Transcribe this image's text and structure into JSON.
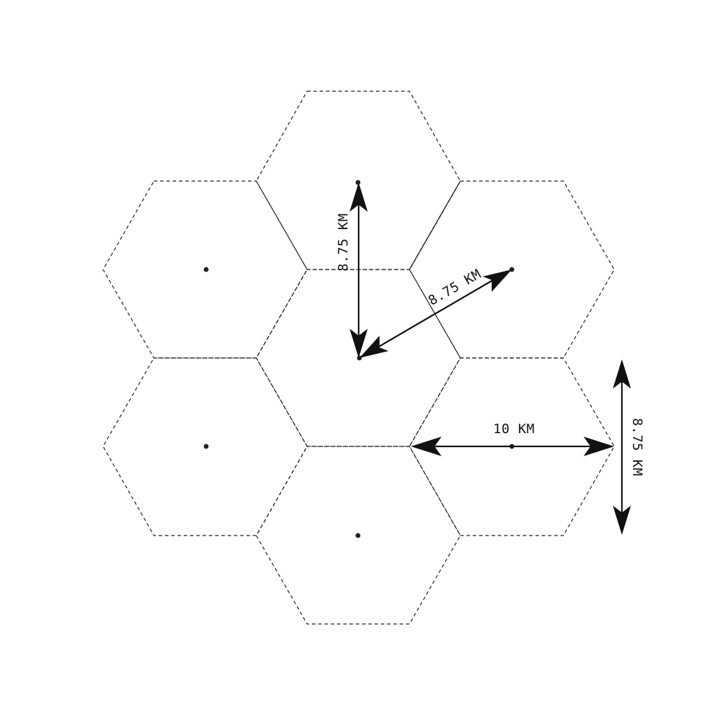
{
  "hexagon_grid": {
    "cell_count": 7,
    "border_style": "dashed",
    "center_markers": true
  },
  "dimensions": {
    "vertical_center_distance": "8.75 KM",
    "diagonal_center_distance": "8.75 KM",
    "hex_width": "10 KM",
    "hex_height": "8.75 KM"
  },
  "colors": {
    "line": "#111111",
    "background": "#ffffff"
  }
}
